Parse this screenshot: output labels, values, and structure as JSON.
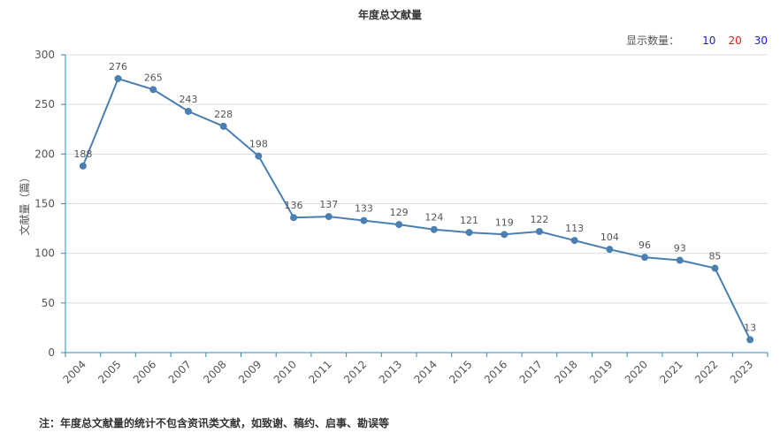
{
  "page_title": "年度总文献量",
  "display_count": {
    "label": "显示数量：",
    "options": [
      {
        "label": "10",
        "color": "#1a1adf"
      },
      {
        "label": "20",
        "color": "#e01b1b"
      },
      {
        "label": "30",
        "color": "#1a1adf"
      }
    ]
  },
  "note": "注：年度总文献量的统计不包含资讯类文献，如致谢、稿约、启事、勘误等",
  "colors": {
    "line": "#4a7fb0",
    "axis": "#2a8fb8",
    "grid": "#dddddd"
  },
  "chart_data": {
    "type": "line",
    "title": "年度总文献量",
    "ylabel": "文献量（篇）",
    "xlabel": "",
    "ylim": [
      0,
      300
    ],
    "yticks": [
      0,
      50,
      100,
      150,
      200,
      250,
      300
    ],
    "grid": true,
    "categories": [
      "2004",
      "2005",
      "2006",
      "2007",
      "2008",
      "2009",
      "2010",
      "2011",
      "2012",
      "2013",
      "2014",
      "2015",
      "2016",
      "2017",
      "2018",
      "2019",
      "2020",
      "2021",
      "2022",
      "2023"
    ],
    "values": [
      188,
      276,
      265,
      243,
      228,
      198,
      136,
      137,
      133,
      129,
      124,
      121,
      119,
      122,
      113,
      104,
      96,
      93,
      85,
      13
    ]
  }
}
